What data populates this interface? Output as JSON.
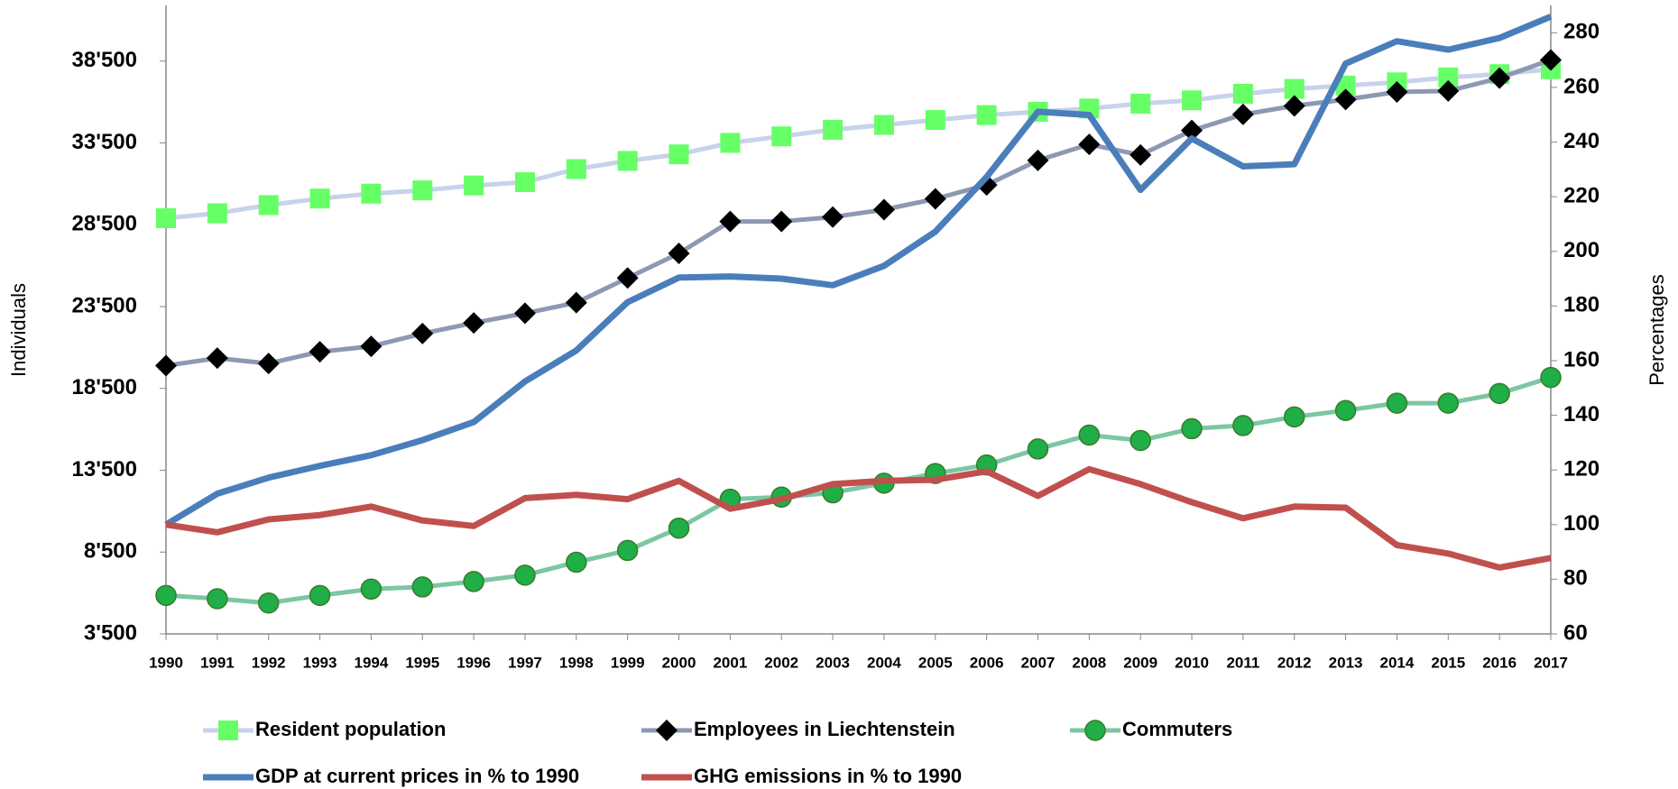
{
  "chart_data": {
    "type": "line",
    "y_label": "Individuals",
    "y2_label": "Percentages",
    "categories": [
      "1990",
      "1991",
      "1992",
      "1993",
      "1994",
      "1995",
      "1996",
      "1997",
      "1998",
      "1999",
      "2000",
      "2001",
      "2002",
      "2003",
      "2004",
      "2005",
      "2006",
      "2007",
      "2008",
      "2009",
      "2010",
      "2011",
      "2012",
      "2013",
      "2014",
      "2015",
      "2016",
      "2017"
    ],
    "ylim": [
      3500,
      41900
    ],
    "yticks": [
      {
        "value": 3500,
        "label": "3'500"
      },
      {
        "value": 8500,
        "label": "8'500"
      },
      {
        "value": 13500,
        "label": "13'500"
      },
      {
        "value": 18500,
        "label": "18'500"
      },
      {
        "value": 23500,
        "label": "23'500"
      },
      {
        "value": 28500,
        "label": "28'500"
      },
      {
        "value": 33500,
        "label": "33'500"
      },
      {
        "value": 38500,
        "label": "38'500"
      }
    ],
    "y2lim": [
      60,
      290
    ],
    "y2ticks": [
      60,
      80,
      100,
      120,
      140,
      160,
      180,
      200,
      220,
      240,
      260,
      280
    ],
    "series": [
      {
        "name": "Resident population",
        "color": "#c6d3ea",
        "marker": "square",
        "marker_color": "#66ff66",
        "values": [
          28900,
          29200,
          29700,
          30100,
          30400,
          30600,
          30900,
          31100,
          31900,
          32400,
          32800,
          33500,
          33900,
          34300,
          34600,
          34900,
          35200,
          35400,
          35600,
          35900,
          36100,
          36500,
          36800,
          37000,
          37200,
          37500,
          37700,
          38000
        ]
      },
      {
        "name": "Employees in Liechtenstein",
        "color": "#8d98b3",
        "marker": "diamond",
        "marker_color": "#000000",
        "values": [
          19890,
          20350,
          20020,
          20740,
          21070,
          21850,
          22500,
          23090,
          23740,
          25250,
          26750,
          28700,
          28700,
          28970,
          29420,
          30080,
          30930,
          32430,
          33410,
          32760,
          34260,
          35240,
          35760,
          36150,
          36610,
          36670,
          37460,
          38570
        ]
      },
      {
        "name": "Commuters",
        "color": "#7cc6a4",
        "marker": "circle",
        "marker_color": "#1fae48",
        "values": [
          5850,
          5650,
          5390,
          5850,
          6240,
          6370,
          6700,
          7090,
          7880,
          8600,
          9960,
          11730,
          11860,
          12120,
          12710,
          13300,
          13820,
          14800,
          15650,
          15320,
          16040,
          16230,
          16760,
          17150,
          17600,
          17600,
          18190,
          19170
        ]
      },
      {
        "name": "GDP at current prices in % to 1990",
        "color": "#4a7ebb",
        "axis": "y2",
        "values": [
          100,
          111.3,
          117.2,
          121.5,
          125.4,
          130.9,
          137.5,
          152.4,
          163.7,
          181.4,
          190.4,
          190.8,
          190,
          187.6,
          194.7,
          207.2,
          227.2,
          251.1,
          249.9,
          222.5,
          241.3,
          231.1,
          231.9,
          268.7,
          276.9,
          273.8,
          278.1,
          285.9
        ]
      },
      {
        "name": "GHG emissions in % to 1990",
        "color": "#c0504d",
        "axis": "y2",
        "values": [
          100,
          97.2,
          101.9,
          103.5,
          106.6,
          101.5,
          99.5,
          109.7,
          110.9,
          109.3,
          116,
          105.8,
          109.3,
          114.8,
          116,
          116.4,
          119.5,
          110.5,
          120.3,
          114.8,
          108.2,
          102.3,
          106.6,
          106.2,
          92.5,
          89.4,
          84.3,
          87.8
        ]
      }
    ]
  }
}
